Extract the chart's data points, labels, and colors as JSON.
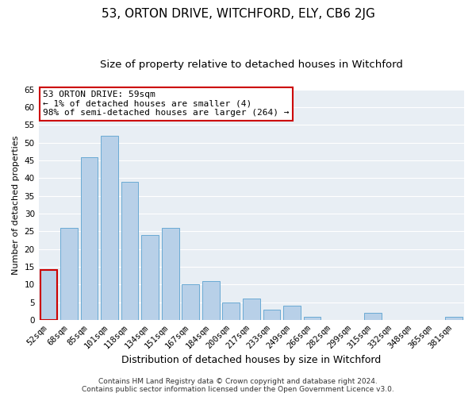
{
  "title": "53, ORTON DRIVE, WITCHFORD, ELY, CB6 2JG",
  "subtitle": "Size of property relative to detached houses in Witchford",
  "xlabel": "Distribution of detached houses by size in Witchford",
  "ylabel": "Number of detached properties",
  "bar_labels": [
    "52sqm",
    "68sqm",
    "85sqm",
    "101sqm",
    "118sqm",
    "134sqm",
    "151sqm",
    "167sqm",
    "184sqm",
    "200sqm",
    "217sqm",
    "233sqm",
    "249sqm",
    "266sqm",
    "282sqm",
    "299sqm",
    "315sqm",
    "332sqm",
    "348sqm",
    "365sqm",
    "381sqm"
  ],
  "bar_values": [
    14,
    26,
    46,
    52,
    39,
    24,
    26,
    10,
    11,
    5,
    6,
    3,
    4,
    1,
    0,
    0,
    2,
    0,
    0,
    0,
    1
  ],
  "bar_color": "#b8d0e8",
  "bar_edge_color": "#6aaad4",
  "highlight_index": 0,
  "highlight_edge_color": "#cc0000",
  "ylim": [
    0,
    65
  ],
  "yticks": [
    0,
    5,
    10,
    15,
    20,
    25,
    30,
    35,
    40,
    45,
    50,
    55,
    60,
    65
  ],
  "annotation_title": "53 ORTON DRIVE: 59sqm",
  "annotation_line1": "← 1% of detached houses are smaller (4)",
  "annotation_line2": "98% of semi-detached houses are larger (264) →",
  "annotation_box_edge": "#cc0000",
  "footer_line1": "Contains HM Land Registry data © Crown copyright and database right 2024.",
  "footer_line2": "Contains public sector information licensed under the Open Government Licence v3.0.",
  "plot_bg_color": "#e8eef4",
  "fig_bg_color": "#ffffff",
  "title_fontsize": 11,
  "subtitle_fontsize": 9.5,
  "xlabel_fontsize": 9,
  "ylabel_fontsize": 8,
  "tick_fontsize": 7.5,
  "footer_fontsize": 6.5,
  "annotation_fontsize": 8
}
